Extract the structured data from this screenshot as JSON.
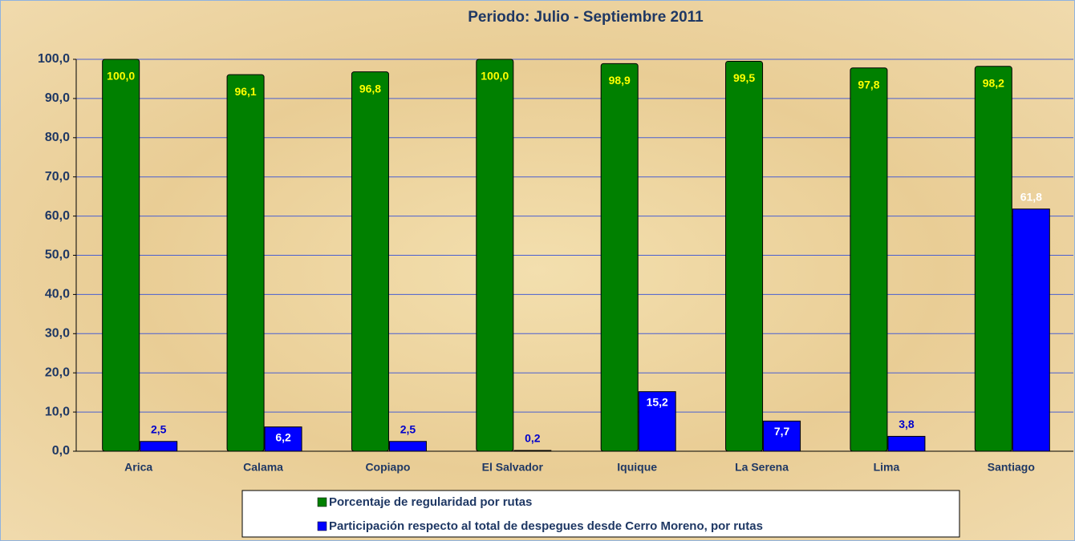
{
  "chart_data": {
    "type": "bar",
    "title": "Periodo: Julio - Septiembre 2011",
    "categories": [
      "Arica",
      "Calama",
      "Copiapo",
      "El Salvador",
      "Iquique",
      "La Serena",
      "Lima",
      "Santiago"
    ],
    "series": [
      {
        "name": "Porcentaje de regularidad por rutas",
        "color": "#008000",
        "values": [
          100.0,
          96.1,
          96.8,
          100.0,
          98.9,
          99.5,
          97.8,
          98.2
        ],
        "value_labels": [
          "100,0",
          "96,1",
          "96,8",
          "100,0",
          "98,9",
          "99,5",
          "97,8",
          "98,2"
        ]
      },
      {
        "name": "Participación respecto al total de despegues desde Cerro Moreno, por rutas",
        "color": "#0000ff",
        "values": [
          2.5,
          6.2,
          2.5,
          0.2,
          15.2,
          7.7,
          3.8,
          61.8
        ],
        "value_labels": [
          "2,5",
          "6,2",
          "2,5",
          "0,2",
          "15,2",
          "7,7",
          "3,8",
          "61,8"
        ]
      }
    ],
    "ylim": [
      0,
      100
    ],
    "yticks": [
      {
        "value": 0,
        "label": "0,0"
      },
      {
        "value": 10,
        "label": "10,0"
      },
      {
        "value": 20,
        "label": "20,0"
      },
      {
        "value": 30,
        "label": "30,0"
      },
      {
        "value": 40,
        "label": "40,0"
      },
      {
        "value": 50,
        "label": "50,0"
      },
      {
        "value": 60,
        "label": "60,0"
      },
      {
        "value": 70,
        "label": "70,0"
      },
      {
        "value": 80,
        "label": "80,0"
      },
      {
        "value": 90,
        "label": "90,0"
      },
      {
        "value": 100,
        "label": "100,0"
      }
    ],
    "grid": true,
    "legend": "bottom"
  }
}
